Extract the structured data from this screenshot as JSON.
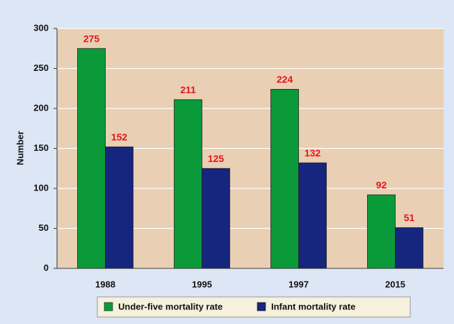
{
  "chart_data": {
    "type": "bar",
    "categories": [
      "1988",
      "1995",
      "1997",
      "2015"
    ],
    "series": [
      {
        "name": "Under-five mortality rate",
        "color": "#0b9a3a",
        "values": [
          275,
          211,
          224,
          92
        ]
      },
      {
        "name": "Infant mortality rate",
        "color": "#16267e",
        "values": [
          152,
          125,
          132,
          51
        ]
      }
    ],
    "ylabel": "Number",
    "ylim": [
      0,
      300
    ],
    "yticks": [
      0,
      50,
      100,
      150,
      200,
      250,
      300
    ],
    "grid": true,
    "legend": "bottom",
    "value_label_color": "#e8141c"
  }
}
